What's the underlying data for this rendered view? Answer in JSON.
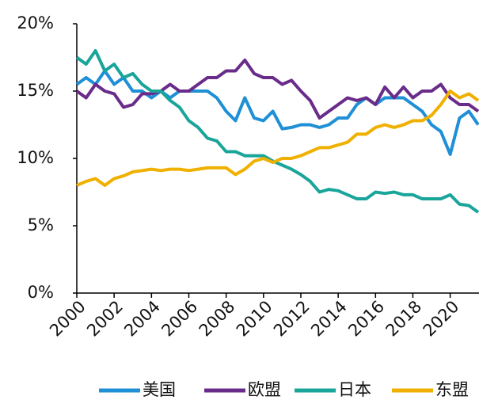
{
  "chart_data": {
    "type": "line",
    "x": [
      2000,
      2000.5,
      2001,
      2001.5,
      2002,
      2002.5,
      2003,
      2003.5,
      2004,
      2004.5,
      2005,
      2005.5,
      2006,
      2006.5,
      2007,
      2007.5,
      2008,
      2008.5,
      2009,
      2009.5,
      2010,
      2010.5,
      2011,
      2011.5,
      2012,
      2012.5,
      2013,
      2013.5,
      2014,
      2014.5,
      2015,
      2015.5,
      2016,
      2016.5,
      2017,
      2017.5,
      2018,
      2018.5,
      2019,
      2019.5,
      2020,
      2020.5,
      2021,
      2021.5
    ],
    "series": [
      {
        "name": "美国",
        "color": "#1f8fd6",
        "values": [
          15.5,
          16,
          15.5,
          16.5,
          15.5,
          16,
          15,
          15,
          14.5,
          15,
          14.5,
          15,
          15,
          15,
          15,
          14.5,
          13.5,
          12.8,
          14.5,
          13,
          12.8,
          13.5,
          12.2,
          12.3,
          12.5,
          12.5,
          12.3,
          12.5,
          13,
          13,
          14,
          14.5,
          14,
          14.5,
          14.5,
          14.5,
          14,
          13.5,
          12.5,
          12,
          10.3,
          13,
          13.5,
          12.5
        ]
      },
      {
        "name": "欧盟",
        "color": "#6a2c8a",
        "values": [
          15,
          14.5,
          15.5,
          15,
          14.8,
          13.8,
          14,
          14.8,
          14.8,
          15,
          15.5,
          15,
          15,
          15.5,
          16,
          16,
          16.5,
          16.5,
          17.3,
          16.3,
          16,
          16,
          15.5,
          15.8,
          15,
          14.3,
          13,
          13.5,
          14,
          14.5,
          14.3,
          14.5,
          14,
          15.3,
          14.5,
          15.3,
          14.5,
          15,
          15,
          15.5,
          14.5,
          14,
          14,
          13.5
        ]
      },
      {
        "name": "日本",
        "color": "#1aa59a",
        "values": [
          17.5,
          17,
          18,
          16.5,
          17,
          16,
          16.3,
          15.5,
          15,
          15,
          14.3,
          13.8,
          12.8,
          12.3,
          11.5,
          11.3,
          10.5,
          10.5,
          10.2,
          10.2,
          10.2,
          9.8,
          9.5,
          9.2,
          8.8,
          8.3,
          7.5,
          7.7,
          7.6,
          7.3,
          7,
          7,
          7.5,
          7.4,
          7.5,
          7.3,
          7.3,
          7,
          7,
          7,
          7.3,
          6.6,
          6.5,
          6
        ]
      },
      {
        "name": "东盟",
        "color": "#f0b000",
        "values": [
          8,
          8.3,
          8.5,
          8,
          8.5,
          8.7,
          9,
          9.1,
          9.2,
          9.1,
          9.2,
          9.2,
          9.1,
          9.2,
          9.3,
          9.3,
          9.3,
          8.8,
          9.2,
          9.8,
          10,
          9.7,
          10,
          10,
          10.2,
          10.5,
          10.8,
          10.8,
          11,
          11.2,
          11.8,
          11.8,
          12.3,
          12.5,
          12.3,
          12.5,
          12.8,
          12.8,
          13.2,
          14,
          15,
          14.5,
          14.8,
          14.3
        ]
      }
    ],
    "xlim": [
      2000,
      2021.5
    ],
    "xticks": [
      2000,
      2002,
      2004,
      2006,
      2008,
      2010,
      2012,
      2014,
      2016,
      2018,
      2020
    ],
    "ylim": [
      0,
      20
    ],
    "yticks": [
      {
        "value": 0,
        "label": "0%"
      },
      {
        "value": 5,
        "label": "5%"
      },
      {
        "value": 10,
        "label": "10%"
      },
      {
        "value": 15,
        "label": "15%"
      },
      {
        "value": 20,
        "label": "20%"
      }
    ],
    "legend": "bottom"
  }
}
